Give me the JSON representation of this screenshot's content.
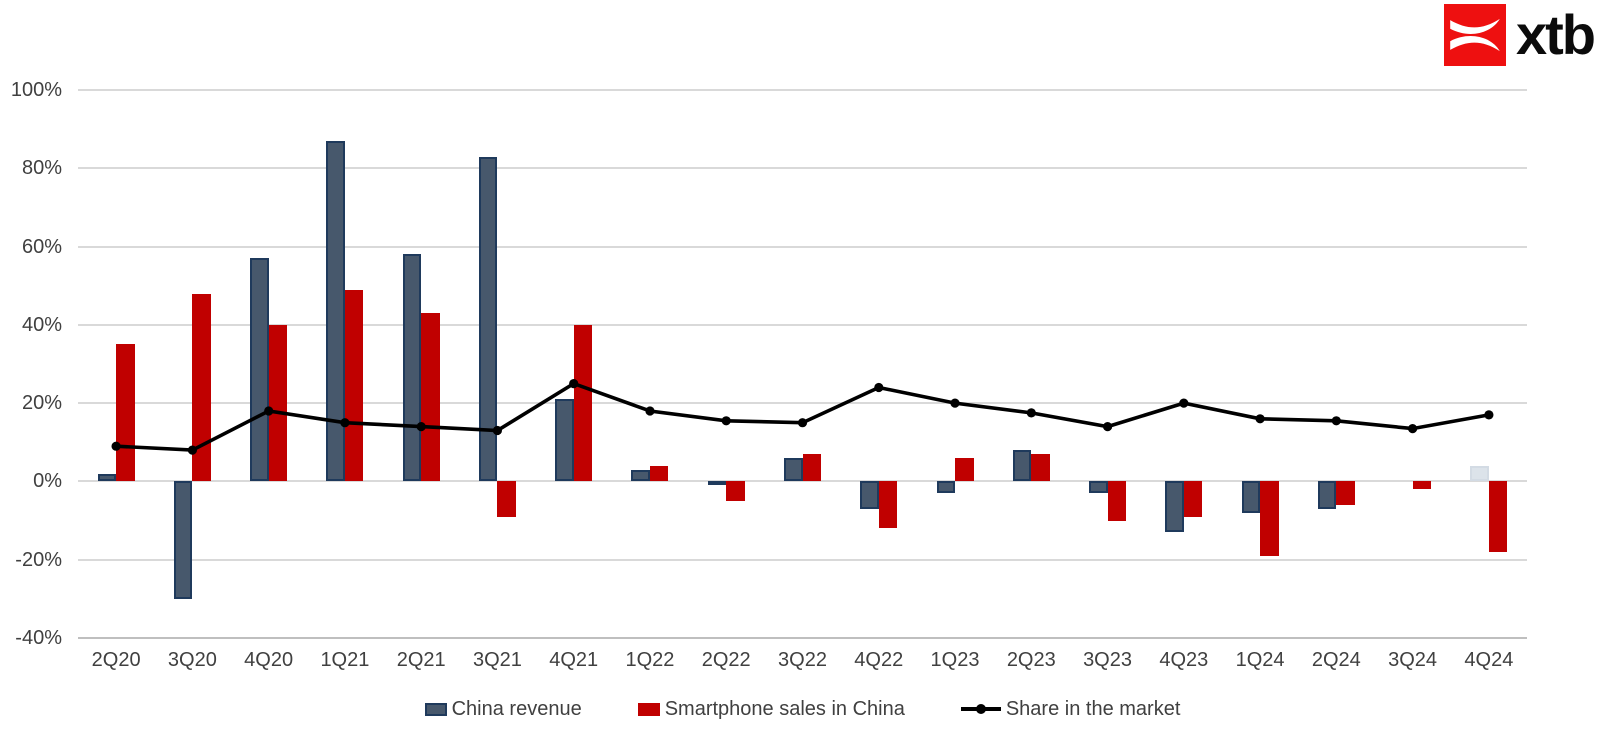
{
  "logo": {
    "text": "xtb",
    "square_color": "#ee1010",
    "mark": "xtb-x-mark"
  },
  "axis_text_color": "#404040",
  "chart_data": {
    "type": "combo-bar-line",
    "title": "",
    "categories": [
      "2Q20",
      "3Q20",
      "4Q20",
      "1Q21",
      "2Q21",
      "3Q21",
      "4Q21",
      "1Q22",
      "2Q22",
      "3Q22",
      "4Q22",
      "1Q23",
      "2Q23",
      "3Q23",
      "4Q23",
      "1Q24",
      "2Q24",
      "3Q24",
      "4Q24"
    ],
    "series": [
      {
        "name": "China revenue",
        "type": "bar",
        "color": "#47586C",
        "border_color": "#1F3A5C",
        "values": [
          2,
          -30,
          57,
          87,
          58,
          83,
          21,
          3,
          -1,
          6,
          -7,
          -3,
          8,
          -3,
          -13,
          -8,
          -7,
          0,
          4
        ],
        "point_overrides": [
          {
            "index": 18,
            "color": "#DCE3EA",
            "border_color": "#D3DBE4"
          }
        ]
      },
      {
        "name": "Smartphone sales in China",
        "type": "bar",
        "color": "#C00000",
        "border_color": "#C00000",
        "values": [
          35,
          48,
          40,
          49,
          43,
          -9,
          40,
          4,
          -5,
          7,
          -12,
          6,
          7,
          -10,
          -9,
          -19,
          -6,
          -2,
          -18
        ]
      },
      {
        "name": "Share in the market",
        "type": "line",
        "color": "#000000",
        "values": [
          9,
          8,
          18,
          15,
          14,
          13,
          25,
          18,
          15.5,
          15,
          24,
          20,
          17.5,
          14,
          20,
          16,
          15.5,
          13.5,
          17
        ]
      }
    ],
    "y_axis": {
      "min": -40,
      "max": 100,
      "step": 20,
      "tick_labels": [
        "100%",
        "80%",
        "60%",
        "40%",
        "20%",
        "0%",
        "-20%",
        "-40%"
      ]
    },
    "x_axis": {
      "label": ""
    },
    "grid": {
      "on": true,
      "color": "#D9D9D9",
      "bottom_color": "#BFBFBF"
    },
    "legend": {
      "position": "bottom",
      "entries": [
        "China revenue",
        "Smartphone sales in China",
        "Share in the market"
      ]
    }
  }
}
